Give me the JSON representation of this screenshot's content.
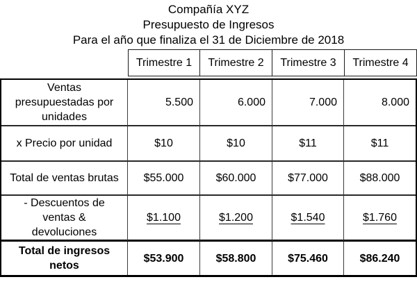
{
  "title": {
    "company": "Compañía XYZ",
    "subtitle": "Presupuesto de Ingresos",
    "period": "Para el año que finaliza el 31 de Diciembre de 2018"
  },
  "table": {
    "column_headers": [
      "Trimestre 1",
      "Trimestre 2",
      "Trimestre 3",
      "Trimestre 4"
    ],
    "rows": [
      {
        "label": "Ventas presupuestadas por unidades",
        "values": [
          "5.500",
          "6.000",
          "7.000",
          "8.000"
        ]
      },
      {
        "label": "x Precio por unidad",
        "values": [
          "$10",
          "$10",
          "$11",
          "$11"
        ]
      },
      {
        "label": "Total de ventas brutas",
        "values": [
          "$55.000",
          "$60.000",
          "$77.000",
          "$88.000"
        ]
      },
      {
        "label": "- Descuentos de ventas & devoluciones",
        "values": [
          "$1.100",
          "$1.200",
          "$1.540",
          "$1.760"
        ]
      },
      {
        "label": "Total de ingresos netos",
        "values": [
          "$53.900",
          "$58.800",
          "$75.460",
          "$86.240"
        ]
      }
    ]
  },
  "colors": {
    "background": "#ffffff",
    "text": "#000000",
    "outer_border": "#000000",
    "inner_border": "#3a3a3a"
  }
}
